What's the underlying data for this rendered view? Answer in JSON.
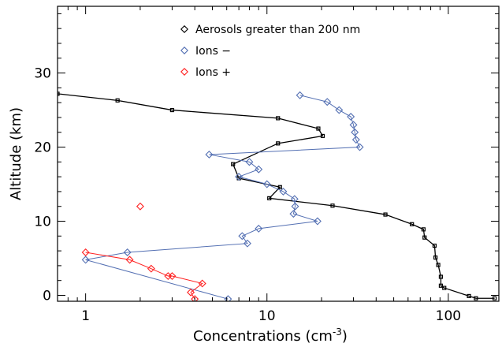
{
  "chart_data": {
    "type": "line",
    "xlabel": "Concentrations (cm",
    "xlabel_sup": "-3",
    "xlabel_end": ")",
    "ylabel": "Altitude (km)",
    "x_scale": "log",
    "xlim": [
      0.7,
      190
    ],
    "ylim": [
      -0.8,
      39
    ],
    "x_ticks": [
      {
        "value": 1,
        "label": "1"
      },
      {
        "value": 10,
        "label": "10"
      },
      {
        "value": 100,
        "label": "100"
      }
    ],
    "y_ticks": [
      {
        "value": 0,
        "label": "0"
      },
      {
        "value": 10,
        "label": "10"
      },
      {
        "value": 20,
        "label": "20"
      },
      {
        "value": 30,
        "label": "30"
      }
    ],
    "grid": false,
    "legend_position": "top-center",
    "series": [
      {
        "name": "Aerosols greater than 200 nm",
        "color": "#000000",
        "marker": "square",
        "line": true,
        "points": [
          [
            0.7,
            27.2
          ],
          [
            1.5,
            26.3
          ],
          [
            3.0,
            25.0
          ],
          [
            11.5,
            23.9
          ],
          [
            19.2,
            22.5
          ],
          [
            20.3,
            21.5
          ],
          [
            11.5,
            20.5
          ],
          [
            6.5,
            17.7
          ],
          [
            7.0,
            15.8
          ],
          [
            11.8,
            14.6
          ],
          [
            10.3,
            13.1
          ],
          [
            23.0,
            12.1
          ],
          [
            45.0,
            10.9
          ],
          [
            63.0,
            9.6
          ],
          [
            73.0,
            8.9
          ],
          [
            74.0,
            7.8
          ],
          [
            84.0,
            6.7
          ],
          [
            85.0,
            5.1
          ],
          [
            88.0,
            4.1
          ],
          [
            91.0,
            2.5
          ],
          [
            91.0,
            1.3
          ],
          [
            95.0,
            1.0
          ],
          [
            130.0,
            -0.1
          ],
          [
            142.0,
            -0.4
          ],
          [
            180.0,
            -0.4
          ]
        ]
      },
      {
        "name": "Ions −",
        "color": "#5470b3",
        "marker": "diamond",
        "line": true,
        "points": [
          [
            15.2,
            27.0
          ],
          [
            21.5,
            26.1
          ],
          [
            25.0,
            25.0
          ],
          [
            29.0,
            24.1
          ],
          [
            30.0,
            23.0
          ],
          [
            30.5,
            22.0
          ],
          [
            31.0,
            21.0
          ],
          [
            32.5,
            20.0
          ],
          [
            4.8,
            19.0
          ],
          [
            8.0,
            18.0
          ],
          [
            9.0,
            17.0
          ],
          [
            7.0,
            16.0
          ],
          [
            10.0,
            15.0
          ],
          [
            12.3,
            14.0
          ],
          [
            14.2,
            13.0
          ],
          [
            14.3,
            12.0
          ],
          [
            14.0,
            11.0
          ],
          [
            19.0,
            10.0
          ],
          [
            9.0,
            9.0
          ],
          [
            7.3,
            8.0
          ],
          [
            7.8,
            7.0
          ],
          [
            1.7,
            5.8
          ],
          [
            1.0,
            4.8
          ],
          [
            6.1,
            -0.5
          ]
        ]
      },
      {
        "name": "Ions +",
        "color": "#ff2020",
        "marker": "diamond",
        "line": true,
        "points": [
          [
            1.0,
            5.8
          ],
          [
            1.75,
            4.8
          ],
          [
            2.3,
            3.6
          ],
          [
            2.85,
            2.6
          ],
          [
            3.0,
            2.6
          ],
          [
            4.4,
            1.6
          ],
          [
            3.8,
            0.4
          ],
          [
            4.0,
            -0.5
          ]
        ],
        "isolated_points": [
          [
            2.0,
            12.0
          ]
        ]
      }
    ]
  }
}
